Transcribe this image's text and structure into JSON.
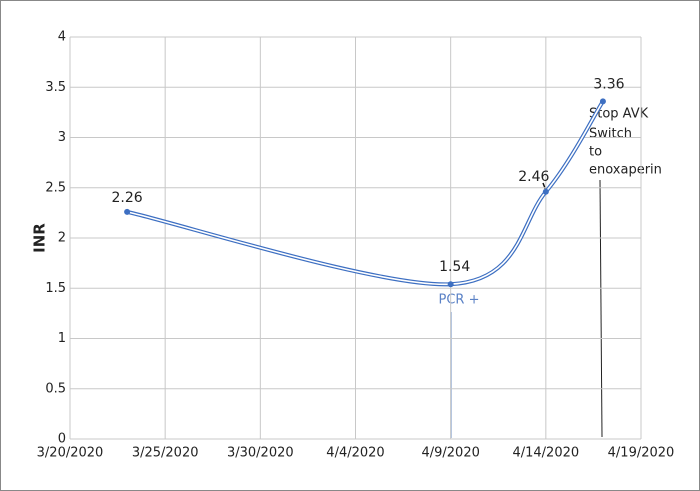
{
  "chart_data": {
    "type": "line",
    "y_label": "INR",
    "x": [
      "3/23/2020",
      "4/9/2020",
      "4/14/2020",
      "4/17/2020"
    ],
    "series": [
      {
        "name": "INR",
        "color": "#3d6fc2",
        "values": [
          2.26,
          1.54,
          2.46,
          3.36
        ]
      }
    ],
    "xlim": [
      "3/20/2020",
      "4/19/2020"
    ],
    "xticks": [
      "3/20/2020",
      "3/25/2020",
      "3/30/2020",
      "4/4/2020",
      "4/9/2020",
      "4/14/2020",
      "4/19/2020"
    ],
    "ylim": [
      0,
      4
    ],
    "yticks": [
      0,
      0.5,
      1,
      1.5,
      2,
      2.5,
      3,
      3.5,
      4
    ],
    "grid": true,
    "annotations": [
      "PCR +",
      "Stop AVK",
      "Switch",
      "to",
      "enoxaperin"
    ]
  }
}
